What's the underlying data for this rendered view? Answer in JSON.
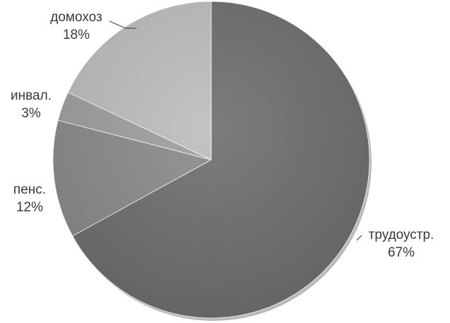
{
  "chart_data": {
    "type": "pie",
    "title": "",
    "start_angle_deg": 0,
    "direction": "clockwise",
    "slices": [
      {
        "label": "трудоустр.",
        "value": 67,
        "value_text": "67%",
        "color": "#6e6e6e"
      },
      {
        "label": "пенс.",
        "value": 12,
        "value_text": "12%",
        "color": "#8a8a8a"
      },
      {
        "label": "инвал.",
        "value": 3,
        "value_text": "3%",
        "color": "#9e9e9e"
      },
      {
        "label": "домохоз",
        "value": 18,
        "value_text": "18%",
        "color": "#bdbdbd"
      }
    ]
  }
}
